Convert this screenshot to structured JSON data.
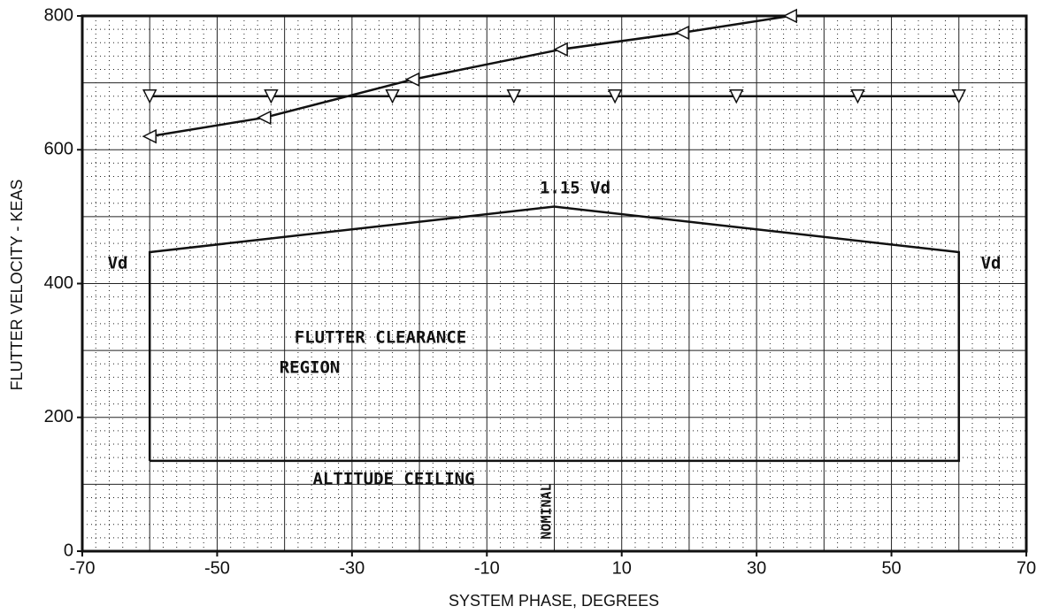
{
  "chart_data": {
    "type": "line",
    "x_label": "SYSTEM PHASE, DEGREES",
    "y_label": "FLUTTER VELOCITY - KEAS",
    "xlim": [
      -70,
      70
    ],
    "xticks": [
      -70,
      -50,
      -30,
      -10,
      10,
      30,
      50,
      70
    ],
    "ylim": [
      0,
      800
    ],
    "yticks": [
      0,
      200,
      400,
      600,
      800
    ],
    "grid": true,
    "series": [
      {
        "color": "#111111",
        "marker": "triangle-left",
        "x": [
          -60,
          -43,
          -21,
          1,
          19,
          35
        ],
        "values": [
          620,
          648,
          705,
          750,
          775,
          800
        ]
      },
      {
        "color": "#111111",
        "marker": "triangle-down",
        "x": [
          -60,
          -42,
          -24,
          -6,
          9,
          27,
          45,
          60
        ],
        "values": [
          680,
          680,
          680,
          680,
          680,
          680,
          680,
          680
        ]
      },
      {
        "color": "#111111",
        "x": [
          -60,
          -60,
          0,
          60,
          60,
          -60
        ],
        "values": [
          135,
          447,
          515,
          447,
          135,
          135
        ]
      }
    ],
    "annotations": [
      "1.15 Vd",
      "Vd",
      "Vd",
      "FLUTTER CLEARANCE",
      "REGION",
      "ALTITUDE CEILING",
      "NOMINAL"
    ]
  }
}
